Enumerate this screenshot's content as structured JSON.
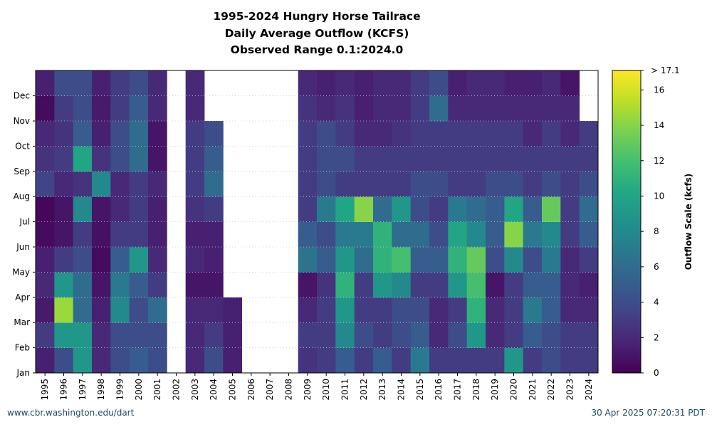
{
  "chart_data": {
    "type": "heatmap",
    "title_lines": [
      "1995-2024 Hungry Horse Tailrace",
      "Daily Average Outflow (KCFS)",
      "Observed Range 0.1:2024.0"
    ],
    "x_categories": [
      "1995",
      "1996",
      "1997",
      "1998",
      "1999",
      "2000",
      "2001",
      "2002",
      "2003",
      "2004",
      "2005",
      "2006",
      "2007",
      "2008",
      "2009",
      "2010",
      "2011",
      "2012",
      "2013",
      "2014",
      "2015",
      "2016",
      "2017",
      "2018",
      "2019",
      "2020",
      "2021",
      "2022",
      "2023",
      "2024"
    ],
    "y_tick_labels": [
      "Jan",
      "Feb",
      "Mar",
      "Apr",
      "May",
      "Jun",
      "Jul",
      "Aug",
      "Sep",
      "Oct",
      "Nov",
      "Dec"
    ],
    "months": [
      "Jan",
      "Feb",
      "Mar",
      "Apr",
      "May",
      "Jun",
      "Jul",
      "Aug",
      "Sep",
      "Oct",
      "Nov",
      "Dec"
    ],
    "monthly_outflow_kcfs": [
      [
        1.5,
        3,
        1.2,
        2,
        1.5,
        0.5,
        0.3,
        3.5,
        2.5,
        2,
        0.5,
        1.5
      ],
      [
        4,
        9,
        14.5,
        9,
        3,
        1,
        1,
        2,
        3,
        2.5,
        3,
        4
      ],
      [
        9,
        9,
        6,
        6,
        4,
        3,
        8,
        2.5,
        10,
        5,
        4,
        4
      ],
      [
        2,
        2,
        1.5,
        1,
        0.5,
        0.8,
        1,
        8,
        2.5,
        1.5,
        1.2,
        1.5
      ],
      [
        4,
        4,
        8,
        7,
        5,
        3,
        2,
        2,
        4,
        4,
        3,
        3
      ],
      [
        5,
        4,
        4,
        5,
        9,
        3,
        3,
        3,
        6,
        6,
        5,
        4
      ],
      [
        4,
        4,
        6,
        3,
        2,
        1.5,
        1.5,
        2,
        1,
        1,
        2,
        2
      ],
      [
        null,
        null,
        null,
        null,
        null,
        null,
        null,
        null,
        null,
        null,
        null,
        null
      ],
      [
        2,
        2,
        2,
        1,
        2,
        1.5,
        2.5,
        3,
        3,
        3,
        2,
        2
      ],
      [
        4,
        3,
        2,
        1,
        1.5,
        1.5,
        3,
        6,
        5,
        4,
        null,
        null
      ],
      [
        1.5,
        1.5,
        1.5,
        null,
        null,
        null,
        null,
        null,
        null,
        null,
        null,
        null
      ],
      [
        null,
        null,
        null,
        null,
        null,
        null,
        null,
        null,
        null,
        null,
        null,
        null
      ],
      [
        null,
        null,
        null,
        null,
        null,
        null,
        null,
        null,
        null,
        null,
        null,
        null
      ],
      [
        null,
        null,
        null,
        null,
        null,
        null,
        null,
        null,
        null,
        null,
        null,
        null
      ],
      [
        2.5,
        3,
        2,
        1,
        6.5,
        5,
        3,
        3,
        3,
        3,
        2.5,
        2
      ],
      [
        3,
        3,
        3,
        2.5,
        5,
        4,
        7,
        4,
        4,
        4,
        2,
        1.5
      ],
      [
        5,
        8,
        9,
        11,
        9,
        7,
        10,
        3,
        4,
        3,
        2.5,
        2
      ],
      [
        3,
        4,
        3,
        3,
        6,
        7,
        14,
        3,
        3,
        2,
        1.5,
        1.5
      ],
      [
        5,
        3,
        3,
        9,
        11,
        11,
        6,
        3,
        3,
        2,
        2,
        2
      ],
      [
        3,
        4,
        4,
        8,
        12,
        6,
        9,
        3,
        3,
        2.5,
        2,
        2
      ],
      [
        7,
        5,
        4,
        3,
        5,
        6,
        4,
        4,
        3,
        3,
        3,
        3
      ],
      [
        3,
        2,
        2,
        3,
        5,
        4,
        3,
        4,
        3,
        3,
        6,
        4
      ],
      [
        3,
        4,
        3,
        9,
        11,
        10,
        7,
        3,
        3,
        3,
        2,
        1.5
      ],
      [
        3,
        9,
        11,
        12,
        13,
        8,
        6,
        3,
        3,
        3,
        2,
        2
      ],
      [
        3,
        2,
        2,
        1,
        4,
        5,
        5,
        4,
        3,
        3,
        2,
        2
      ],
      [
        9,
        3,
        3,
        3,
        8,
        14,
        10,
        4,
        3,
        3,
        2,
        1.5
      ],
      [
        3,
        5,
        7,
        5,
        4,
        7,
        5,
        3,
        3,
        2,
        2,
        1.5
      ],
      [
        4,
        4,
        5,
        5,
        7,
        8,
        13,
        4,
        3,
        3,
        2,
        2
      ],
      [
        3,
        3,
        2,
        2,
        2,
        3,
        3,
        3,
        3,
        2,
        2,
        1
      ],
      [
        3,
        3,
        2,
        1.5,
        3,
        5,
        6,
        4,
        3,
        3,
        null,
        null
      ]
    ],
    "colorbar": {
      "label": "Outflow Scale (kcfs)",
      "ticks": [
        "0",
        "2",
        "4",
        "6",
        "8",
        "10",
        "12",
        "14",
        "16"
      ],
      "max_label": "> 17.1",
      "range": [
        0,
        17.1
      ]
    },
    "colormap": "viridis"
  },
  "footer": {
    "left": "www.cbr.washington.edu/dart",
    "right": "30 Apr 2025 07:20:31 PDT"
  }
}
